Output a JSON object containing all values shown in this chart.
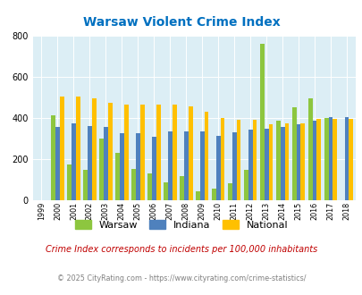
{
  "title": "Warsaw Violent Crime Index",
  "years": [
    "1999",
    "2000",
    "2001",
    "2002",
    "2003",
    "2004",
    "2005",
    "2006",
    "2007",
    "2008",
    "2009",
    "2010",
    "2011",
    "2012",
    "2013",
    "2014",
    "2015",
    "2016",
    "2017",
    "2018"
  ],
  "warsaw": [
    0,
    415,
    175,
    150,
    300,
    230,
    155,
    130,
    90,
    120,
    45,
    60,
    85,
    150,
    760,
    385,
    450,
    495,
    400,
    0
  ],
  "indiana": [
    0,
    355,
    375,
    360,
    355,
    325,
    325,
    310,
    335,
    335,
    335,
    315,
    330,
    345,
    350,
    355,
    370,
    385,
    405,
    405
  ],
  "national": [
    0,
    505,
    505,
    495,
    475,
    465,
    465,
    465,
    465,
    455,
    430,
    400,
    390,
    390,
    370,
    375,
    375,
    395,
    395,
    395
  ],
  "colors": {
    "warsaw": "#8dc63f",
    "indiana": "#4f81bd",
    "national": "#ffc000"
  },
  "ylim": [
    0,
    800
  ],
  "yticks": [
    0,
    200,
    400,
    600,
    800
  ],
  "bg_color": "#dceef5",
  "subtitle": "Crime Index corresponds to incidents per 100,000 inhabitants",
  "footer": "© 2025 CityRating.com - https://www.cityrating.com/crime-statistics/",
  "title_color": "#0070c0",
  "subtitle_color": "#c00000",
  "footer_color": "#808080"
}
